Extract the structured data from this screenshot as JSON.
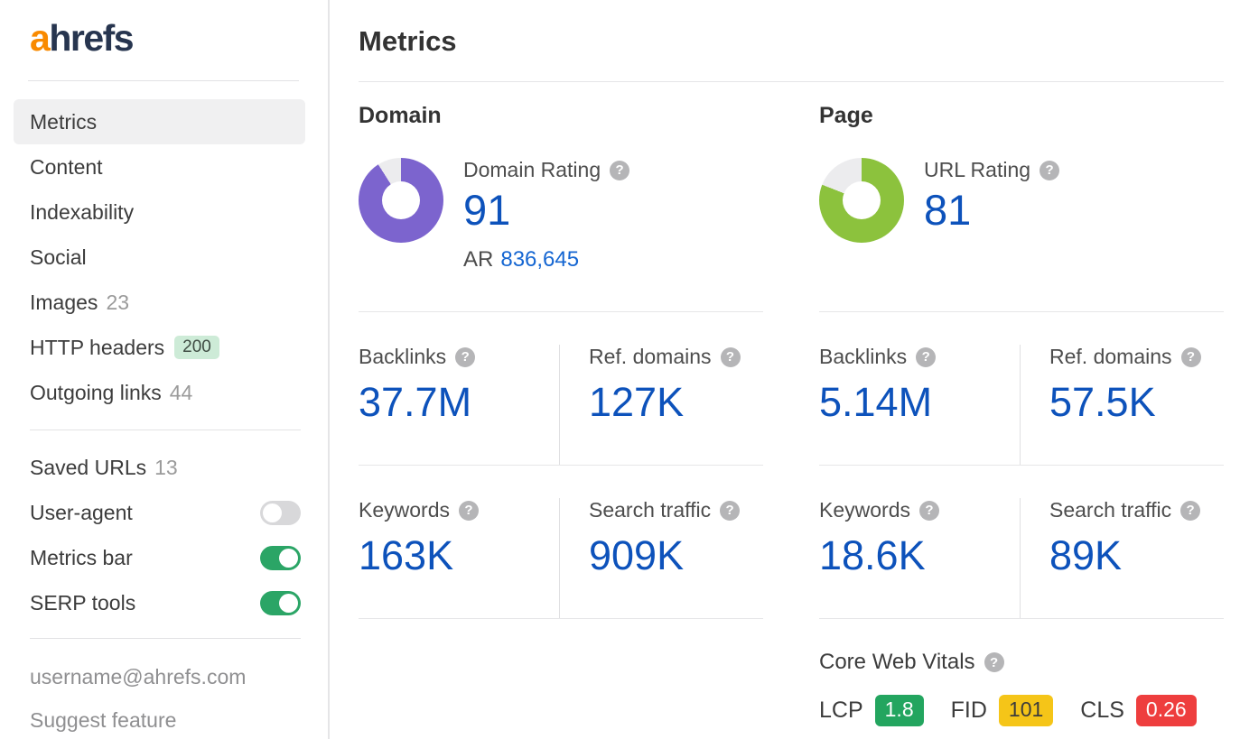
{
  "brand": {
    "logo_a": "a",
    "logo_rest": "hrefs"
  },
  "colors": {
    "accent_blue": "#0d52bb",
    "link_blue": "#1566d2",
    "domain_donut_purple": "#7c64ce",
    "page_donut_green": "#8cc23d",
    "donut_track_gray": "#ececee",
    "toggle_on_green": "#2ba566",
    "http_badge_green_bg": "#cdebd7",
    "brand_orange": "#f98a00",
    "brand_navy": "#27354f"
  },
  "sidebar": {
    "items": [
      {
        "label": "Metrics",
        "selected": true
      },
      {
        "label": "Content"
      },
      {
        "label": "Indexability"
      },
      {
        "label": "Social"
      },
      {
        "label": "Images",
        "count": "23"
      },
      {
        "label": "HTTP headers",
        "badge": "200"
      },
      {
        "label": "Outgoing links",
        "count": "44"
      }
    ],
    "settings": [
      {
        "label": "Saved URLs",
        "count": "13"
      },
      {
        "label": "User-agent",
        "toggle": "off"
      },
      {
        "label": "Metrics bar",
        "toggle": "on"
      },
      {
        "label": "SERP tools",
        "toggle": "on"
      }
    ],
    "footer": {
      "email": "username@ahrefs.com",
      "suggest_feature": "Suggest feature"
    }
  },
  "header": {
    "title": "Metrics"
  },
  "chart_data": [
    {
      "type": "pie",
      "title": "Domain Rating",
      "values": [
        91,
        9
      ],
      "legend_position": "none",
      "colors": [
        "#7c64ce",
        "#ececee"
      ],
      "center_label": "91"
    },
    {
      "type": "pie",
      "title": "URL Rating",
      "values": [
        81,
        19
      ],
      "legend_position": "none",
      "colors": [
        "#8cc23d",
        "#ececee"
      ],
      "center_label": "81"
    }
  ],
  "domain": {
    "heading": "Domain",
    "rating": {
      "label": "Domain Rating",
      "value": "91",
      "percent": 91,
      "color": "#7c64ce",
      "ar_label": "AR",
      "ar_value": "836,645"
    },
    "stats": [
      {
        "label": "Backlinks",
        "value": "37.7M"
      },
      {
        "label": "Ref. domains",
        "value": "127K"
      },
      {
        "label": "Keywords",
        "value": "163K"
      },
      {
        "label": "Search traffic",
        "value": "909K"
      }
    ]
  },
  "page": {
    "heading": "Page",
    "rating": {
      "label": "URL Rating",
      "value": "81",
      "percent": 81,
      "color": "#8cc23d"
    },
    "stats": [
      {
        "label": "Backlinks",
        "value": "5.14M"
      },
      {
        "label": "Ref. domains",
        "value": "57.5K"
      },
      {
        "label": "Keywords",
        "value": "18.6K"
      },
      {
        "label": "Search traffic",
        "value": "89K"
      }
    ],
    "core_web_vitals": {
      "label": "Core Web Vitals",
      "metrics": [
        {
          "name": "LCP",
          "value": "1.8",
          "bg": "#23a55f",
          "fg": "#ffffff"
        },
        {
          "name": "FID",
          "value": "101",
          "bg": "#f5c518",
          "fg": "#3c3c3c"
        },
        {
          "name": "CLS",
          "value": "0.26",
          "bg": "#ee3e3e",
          "fg": "#ffffff"
        }
      ]
    }
  }
}
